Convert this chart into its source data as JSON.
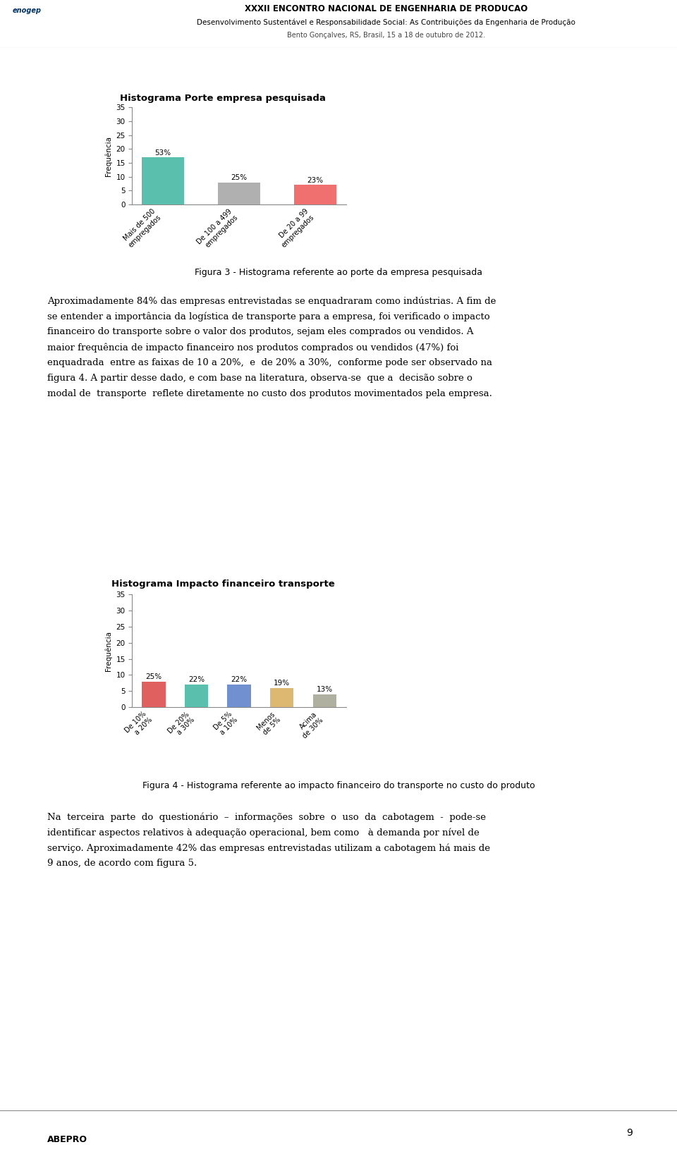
{
  "page_width": 9.6,
  "page_height": 16.44,
  "page_bg": "#ffffff",
  "header_title": "XXXII ENCONTRO NACIONAL DE ENGENHARIA DE PRODUCAO",
  "header_sub": "Desenvolvimento Sustentável e Responsabilidade Social: As Contribuições da Engenharia de Produção",
  "header_loc": "Bento Gonçalves, RS, Brasil, 15 a 18 de outubro de 2012.",
  "chart1_title": "Histograma Porte empresa pesquisada",
  "chart1_categories": [
    "Mais de 500\nempregados",
    "De 100 a 499\nempregados",
    "De 20 a 99\nempregados"
  ],
  "chart1_values": [
    17,
    8,
    7
  ],
  "chart1_labels": [
    "53%",
    "25%",
    "23%"
  ],
  "chart1_colors": [
    "#5bbfad",
    "#b0b0b0",
    "#f07070"
  ],
  "chart1_ylabel": "Frequência",
  "chart1_ylim": [
    0,
    35
  ],
  "chart1_yticks": [
    0,
    5,
    10,
    15,
    20,
    25,
    30,
    35
  ],
  "chart1_bg": "#ede8dc",
  "chart1_plot_bg": "#ffffff",
  "caption1": "Figura 3 - Histograma referente ao porte da empresa pesquisada",
  "body_text1_lines": [
    "Aproximadamente 84% das empresas entrevistadas se enquadraram como indústrias. A fim de",
    "se entender a importância da logística de transporte para a empresa, foi verificado o impacto",
    "financeiro do transporte sobre o valor dos produtos, sejam eles comprados ou vendidos. A",
    "maior frequência de impacto financeiro nos produtos comprados ou vendidos (47%) foi",
    "enquadrada  entre as faixas de 10 a 20%,  e  de 20% a 30%,  conforme pode ser observado na",
    "figura 4. A partir desse dado, e com base na literatura, observa-se  que a  decisão sobre o",
    "modal de  transporte  reflete diretamente no custo dos produtos movimentados pela empresa."
  ],
  "chart2_title": "Histograma Impacto financeiro transporte",
  "chart2_categories": [
    "De 10%\na 20%",
    "De 20%\na 30%",
    "De 5%\na 10%",
    "Menos\nde 5%",
    "Acima\nde 30%"
  ],
  "chart2_values": [
    8,
    7,
    7,
    6,
    4
  ],
  "chart2_labels": [
    "25%",
    "22%",
    "22%",
    "19%",
    "13%"
  ],
  "chart2_colors": [
    "#e06060",
    "#5bbfad",
    "#7090d0",
    "#ddb870",
    "#b0b0a0"
  ],
  "chart2_ylabel": "Frequência",
  "chart2_ylim": [
    0,
    35
  ],
  "chart2_yticks": [
    0,
    5,
    10,
    15,
    20,
    25,
    30,
    35
  ],
  "chart2_bg": "#ede8dc",
  "chart2_plot_bg": "#ffffff",
  "caption2": "Figura 4 - Histograma referente ao impacto financeiro do transporte no custo do produto",
  "body_text2_lines": [
    "Na  terceira  parte  do  questionário  –  informações  sobre  o  uso  da  cabotagem  -  pode-se",
    "identificar aspectos relativos à adequação operacional, bem como   à demanda por nível de",
    "serviço. Aproximadamente 42% das empresas entrevistadas utilizam a cabotagem há mais de",
    "9 anos, de acordo com figura 5."
  ],
  "footer_number": "9",
  "footer_logo_text": "ABEPRO"
}
